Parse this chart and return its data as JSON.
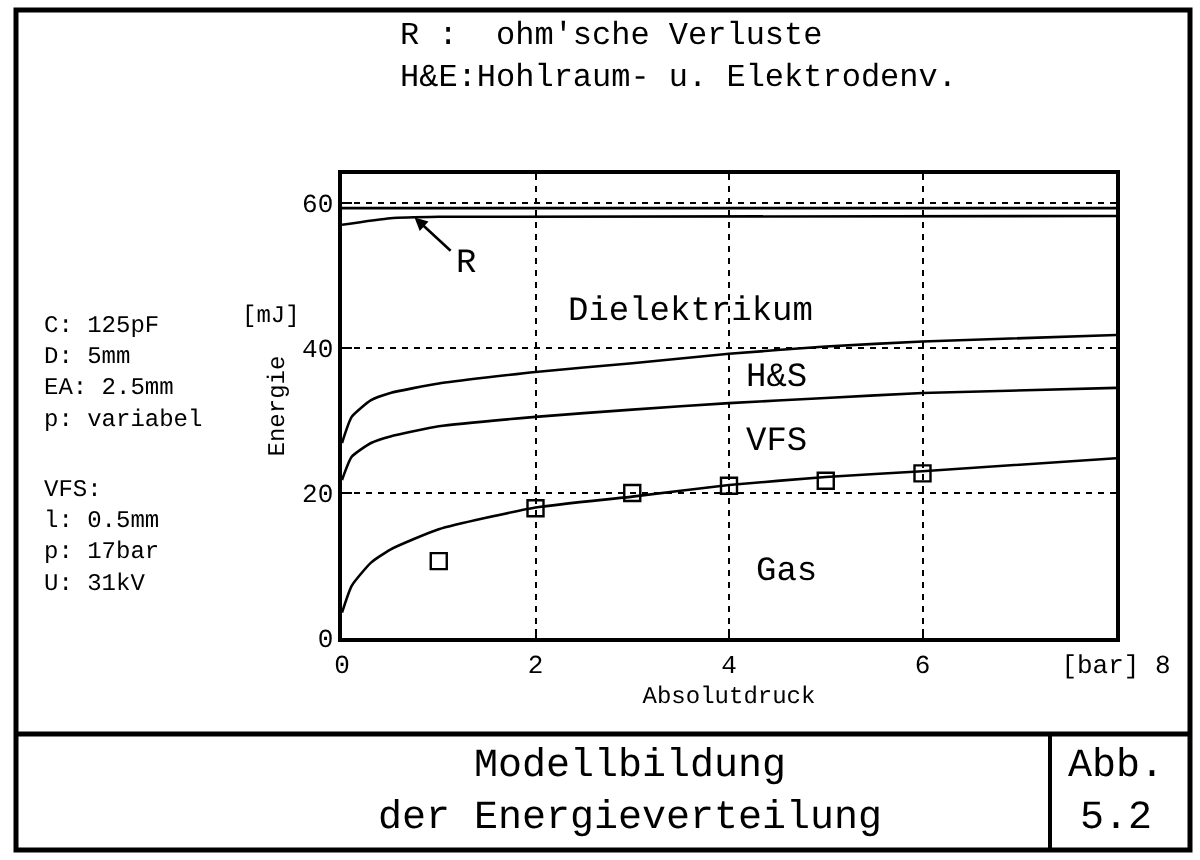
{
  "chart_data": {
    "type": "line",
    "title": "R :  ohm'sche Verluste\nH&E:Hohlraum- u. Elektrodenv.",
    "xlabel": "Absolutdruck",
    "ylabel": "Energie",
    "xlim": [
      0,
      8
    ],
    "ylim": [
      0,
      64
    ],
    "xticks": [
      0,
      2,
      4,
      6,
      {
        "value": 8,
        "label": "[bar] 8"
      }
    ],
    "yticks": [
      0,
      20,
      40,
      60
    ],
    "grid": true,
    "line_style": "solid",
    "series": [
      {
        "color": "#000000",
        "x": [
          0,
          8
        ],
        "values": [
          59.3,
          59.3
        ]
      },
      {
        "color": "#000000",
        "x": [
          0,
          0.5,
          1,
          8
        ],
        "values": [
          57.0,
          57.9,
          58.1,
          58.2
        ]
      },
      {
        "color": "#000000",
        "x": [
          0,
          0.1,
          0.3,
          0.5,
          1,
          2,
          3,
          4,
          5,
          6,
          8
        ],
        "values": [
          26.9,
          30.5,
          32.8,
          33.8,
          35.1,
          36.7,
          37.9,
          39.2,
          40.2,
          40.9,
          41.8
        ]
      },
      {
        "color": "#000000",
        "x": [
          0,
          0.1,
          0.3,
          0.5,
          1,
          2,
          3,
          4,
          5,
          6,
          8
        ],
        "values": [
          21.8,
          25.0,
          26.9,
          27.8,
          29.2,
          30.5,
          31.5,
          32.4,
          33.1,
          33.8,
          34.5
        ]
      },
      {
        "color": "#000000",
        "x": [
          0,
          0.1,
          0.3,
          0.5,
          1,
          2,
          3,
          4,
          5,
          6,
          8
        ],
        "values": [
          3.5,
          7.2,
          10.4,
          12.2,
          15.0,
          18.0,
          19.5,
          21.1,
          22.2,
          23.0,
          24.8
        ]
      },
      {
        "type": "scatter",
        "marker": "square",
        "color": "#000000",
        "x": [
          1,
          2,
          3,
          4,
          5,
          6
        ],
        "values": [
          10.6,
          17.9,
          20.0,
          21.0,
          21.7,
          22.7
        ]
      }
    ],
    "annotations": [
      "[mJ]",
      "C: 125pF\nD: 5mm\nEA: 2.5mm\np: variabel",
      "VFS:\nl: 0.5mm\np: 17bar\nU: 31kV",
      "Modellbildung\nder Energieverteilung",
      "Abb.\n5.2",
      {
        "text": "R",
        "x": 0.75,
        "y": 58.0
      },
      "Dielektrikum",
      "H&S",
      "VFS",
      "Gas"
    ]
  }
}
